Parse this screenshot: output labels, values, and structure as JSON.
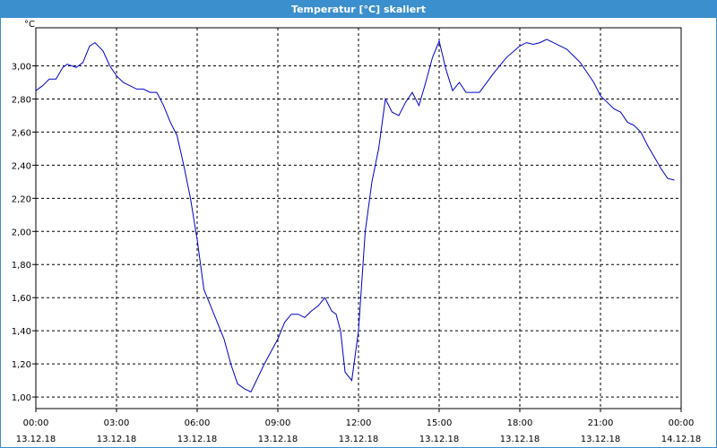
{
  "window": {
    "title": "Temperatur [°C] skaliert"
  },
  "colors": {
    "titlebar": "#3c8fcd",
    "series": "#0000cc",
    "grid": "#000000",
    "background": "#ffffff"
  },
  "chart_data": {
    "type": "line",
    "title": "Temperatur [°C] skaliert",
    "xlabel": "",
    "ylabel": "°C",
    "xlim": [
      "13.12.18 00:00",
      "14.12.18 00:00"
    ],
    "ylim": [
      0.93,
      3.23
    ],
    "grid": true,
    "y_ticks": [
      "1,00",
      "1,20",
      "1,40",
      "1,60",
      "1,80",
      "2,00",
      "2,20",
      "2,40",
      "2,60",
      "2,80",
      "3,00"
    ],
    "y_tick_values": [
      1.0,
      1.2,
      1.4,
      1.6,
      1.8,
      2.0,
      2.2,
      2.4,
      2.6,
      2.8,
      3.0
    ],
    "x_ticks": [
      {
        "time": "00:00",
        "date": "13.12.18"
      },
      {
        "time": "03:00",
        "date": "13.12.18"
      },
      {
        "time": "06:00",
        "date": "13.12.18"
      },
      {
        "time": "09:00",
        "date": "13.12.18"
      },
      {
        "time": "12:00",
        "date": "13.12.18"
      },
      {
        "time": "15:00",
        "date": "13.12.18"
      },
      {
        "time": "18:00",
        "date": "13.12.18"
      },
      {
        "time": "21:00",
        "date": "13.12.18"
      },
      {
        "time": "00:00",
        "date": "14.12.18"
      }
    ],
    "series": [
      {
        "x": [
          "13.12.18 00:00",
          "13.12.18 00:15",
          "13.12.18 00:30",
          "13.12.18 00:45",
          "13.12.18 01:00",
          "13.12.18 01:10",
          "13.12.18 01:20",
          "13.12.18 01:30",
          "13.12.18 01:45",
          "13.12.18 02:00",
          "13.12.18 02:12",
          "13.12.18 02:30",
          "13.12.18 02:45",
          "13.12.18 03:00",
          "13.12.18 03:15",
          "13.12.18 03:30",
          "13.12.18 03:45",
          "13.12.18 04:00",
          "13.12.18 04:15",
          "13.12.18 04:30",
          "13.12.18 04:45",
          "13.12.18 05:00",
          "13.12.18 05:15",
          "13.12.18 05:30",
          "13.12.18 05:45",
          "13.12.18 06:00",
          "13.12.18 06:15",
          "13.12.18 06:30",
          "13.12.18 06:45",
          "13.12.18 07:00",
          "13.12.18 07:15",
          "13.12.18 07:30",
          "13.12.18 07:45",
          "13.12.18 08:00",
          "13.12.18 08:30",
          "13.12.18 09:00",
          "13.12.18 09:15",
          "13.12.18 09:30",
          "13.12.18 09:45",
          "13.12.18 10:00",
          "13.12.18 10:15",
          "13.12.18 10:30",
          "13.12.18 10:45",
          "13.12.18 11:00",
          "13.12.18 11:10",
          "13.12.18 11:20",
          "13.12.18 11:30",
          "13.12.18 11:45",
          "13.12.18 12:00",
          "13.12.18 12:15",
          "13.12.18 12:30",
          "13.12.18 12:45",
          "13.12.18 13:00",
          "13.12.18 13:15",
          "13.12.18 13:30",
          "13.12.18 13:45",
          "13.12.18 14:00",
          "13.12.18 14:15",
          "13.12.18 14:30",
          "13.12.18 14:45",
          "13.12.18 15:00",
          "13.12.18 15:15",
          "13.12.18 15:30",
          "13.12.18 15:45",
          "13.12.18 16:00",
          "13.12.18 16:30",
          "13.12.18 17:00",
          "13.12.18 17:30",
          "13.12.18 18:00",
          "13.12.18 18:15",
          "13.12.18 18:30",
          "13.12.18 18:45",
          "13.12.18 19:00",
          "13.12.18 19:15",
          "13.12.18 19:30",
          "13.12.18 19:45",
          "13.12.18 20:00",
          "13.12.18 20:15",
          "13.12.18 20:30",
          "13.12.18 20:45",
          "13.12.18 21:00",
          "13.12.18 21:15",
          "13.12.18 21:30",
          "13.12.18 21:45",
          "13.12.18 22:00",
          "13.12.18 22:15",
          "13.12.18 22:30",
          "13.12.18 22:45",
          "13.12.18 23:00",
          "13.12.18 23:15",
          "13.12.18 23:30",
          "13.12.18 23:45"
        ],
        "values": [
          2.85,
          2.88,
          2.92,
          2.92,
          2.99,
          3.01,
          3.0,
          2.99,
          3.02,
          3.12,
          3.14,
          3.09,
          3.0,
          2.94,
          2.9,
          2.88,
          2.86,
          2.86,
          2.84,
          2.84,
          2.76,
          2.66,
          2.58,
          2.4,
          2.2,
          1.95,
          1.65,
          1.55,
          1.45,
          1.35,
          1.2,
          1.08,
          1.05,
          1.03,
          1.2,
          1.35,
          1.45,
          1.5,
          1.5,
          1.48,
          1.52,
          1.55,
          1.6,
          1.52,
          1.5,
          1.4,
          1.15,
          1.1,
          1.4,
          2.0,
          2.3,
          2.5,
          2.8,
          2.72,
          2.7,
          2.78,
          2.84,
          2.76,
          2.9,
          3.05,
          3.15,
          2.98,
          2.85,
          2.9,
          2.84,
          2.84,
          2.95,
          3.05,
          3.12,
          3.14,
          3.13,
          3.14,
          3.16,
          3.14,
          3.12,
          3.1,
          3.06,
          3.02,
          2.96,
          2.9,
          2.82,
          2.78,
          2.74,
          2.72,
          2.66,
          2.64,
          2.6,
          2.52,
          2.45,
          2.38,
          2.32,
          2.31
        ]
      }
    ]
  }
}
